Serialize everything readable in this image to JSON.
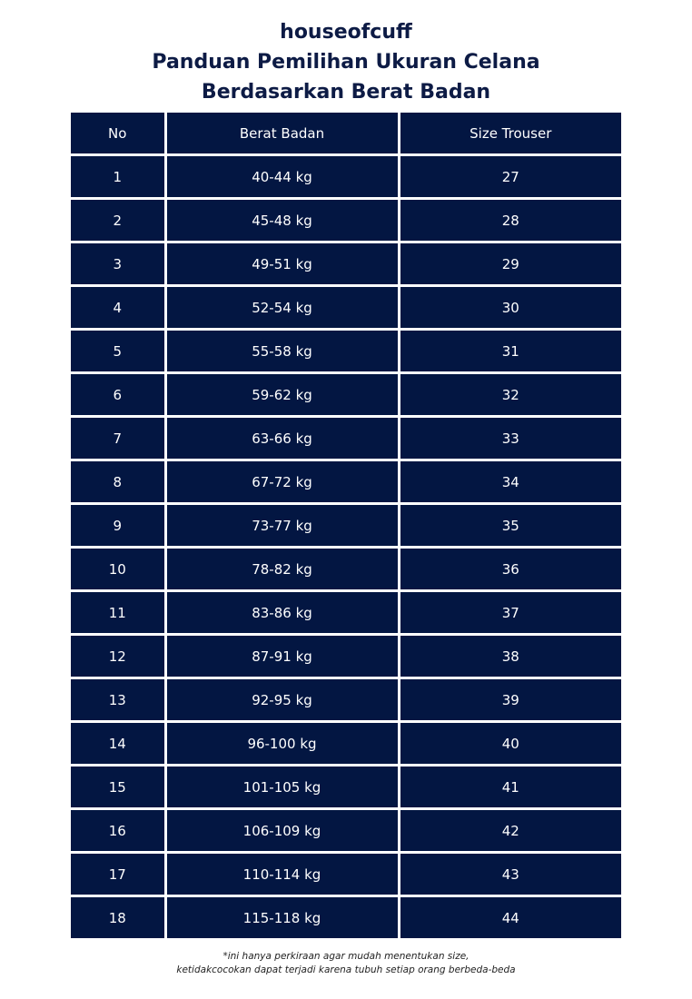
{
  "header": {
    "brand": "houseofcuff",
    "title_line1": "Panduan Pemilihan Ukuran Celana",
    "title_line2": "Berdasarkan Berat Badan"
  },
  "table": {
    "columns": [
      "No",
      "Berat Badan",
      "Size Trouser"
    ],
    "rows": [
      [
        "1",
        "40-44 kg",
        "27"
      ],
      [
        "2",
        "45-48 kg",
        "28"
      ],
      [
        "3",
        "49-51 kg",
        "29"
      ],
      [
        "4",
        "52-54 kg",
        "30"
      ],
      [
        "5",
        "55-58 kg",
        "31"
      ],
      [
        "6",
        "59-62 kg",
        "32"
      ],
      [
        "7",
        "63-66 kg",
        "33"
      ],
      [
        "8",
        "67-72 kg",
        "34"
      ],
      [
        "9",
        "73-77 kg",
        "35"
      ],
      [
        "10",
        "78-82 kg",
        "36"
      ],
      [
        "11",
        "83-86 kg",
        "37"
      ],
      [
        "12",
        "87-91 kg",
        "38"
      ],
      [
        "13",
        "92-95 kg",
        "39"
      ],
      [
        "14",
        "96-100 kg",
        "40"
      ],
      [
        "15",
        "101-105 kg",
        "41"
      ],
      [
        "16",
        "106-109 kg",
        "42"
      ],
      [
        "17",
        "110-114 kg",
        "43"
      ],
      [
        "18",
        "115-118 kg",
        "44"
      ]
    ]
  },
  "footnote": {
    "line1": "*ini hanya perkiraan agar mudah menentukan size,",
    "line2": "ketidakcocokan dapat terjadi karena tubuh setiap orang berbeda-beda"
  },
  "colors": {
    "table_bg": "#031642",
    "title": "#0d1b45"
  }
}
